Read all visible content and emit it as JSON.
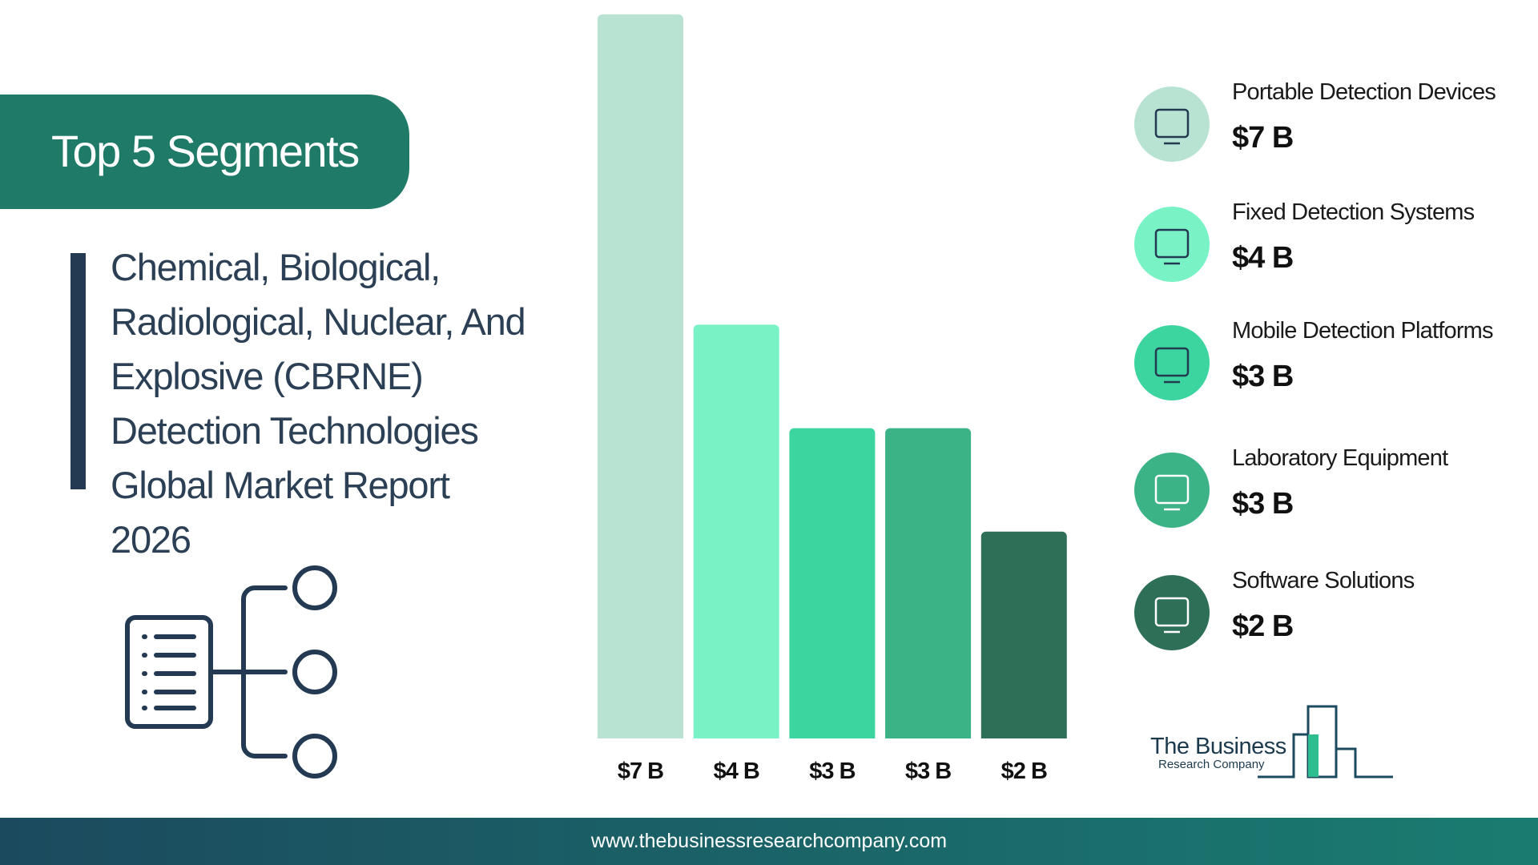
{
  "chart_data": {
    "type": "bar",
    "title": "Top 5 Segments",
    "subtitle": [
      "Chemical, Biological,",
      "Radiological, Nuclear, And",
      "Explosive (CBRNE)",
      "Detection Technologies",
      "Global Market Report",
      "2026"
    ],
    "categories": [
      "Portable Detection Devices",
      "Fixed Detection Systems",
      "Mobile Detection Platforms",
      "Laboratory Equipment",
      "Software Solutions"
    ],
    "values": [
      7,
      4,
      3,
      3,
      2
    ],
    "value_labels": [
      "$7 B",
      "$4 B",
      "$3 B",
      "$3 B",
      "$2 B"
    ],
    "colors": [
      "#b8e3d3",
      "#79f2c6",
      "#3dd59f",
      "#3bb386",
      "#2e6f58"
    ],
    "footer": "www.thebusinessresearchcompany.com",
    "logo": [
      "The Business",
      "Research Company"
    ]
  }
}
